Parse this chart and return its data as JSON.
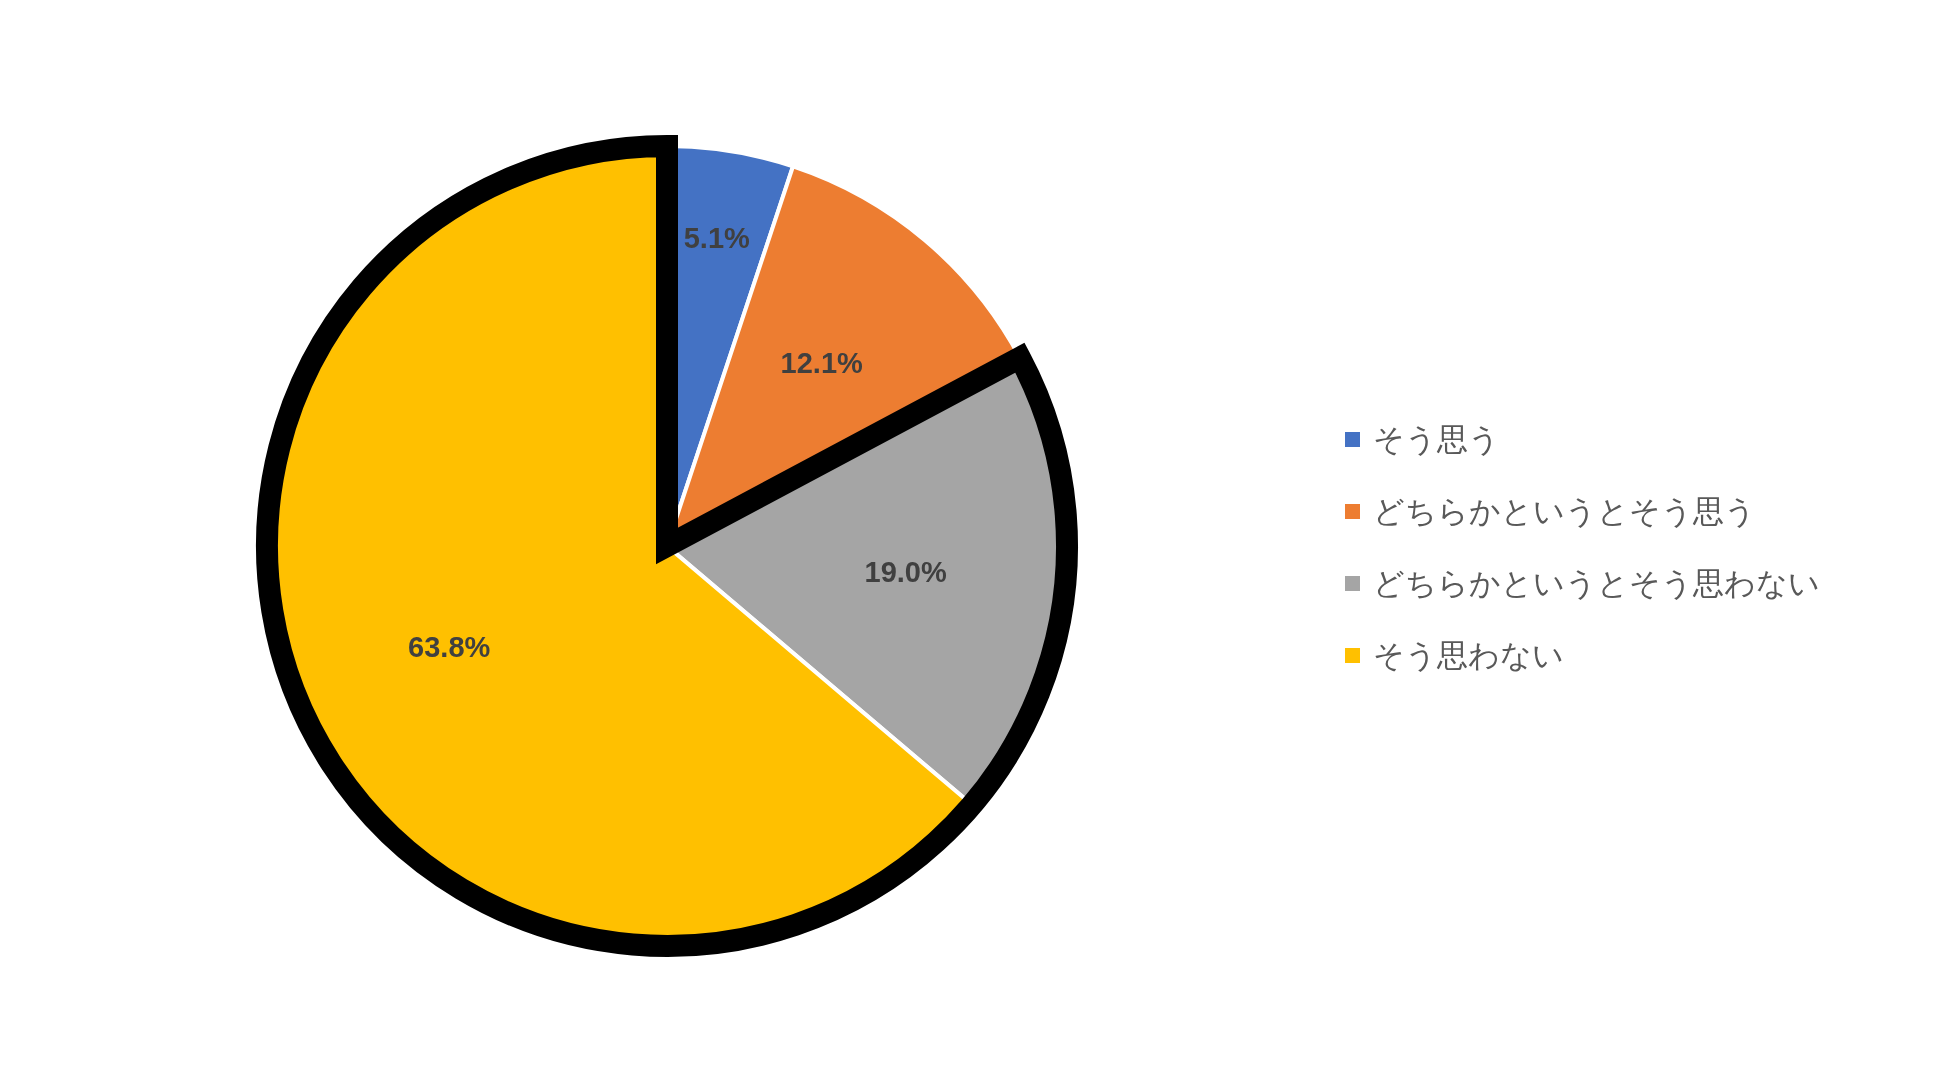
{
  "chart_data": {
    "type": "pie",
    "categories": [
      "そう思う",
      "どちらかというとそう思う",
      "どちらかというとそう思わない",
      "そう思わない"
    ],
    "values": [
      5.1,
      12.1,
      19.0,
      63.8
    ],
    "colors": [
      "#4472c4",
      "#ed7d31",
      "#a5a5a5",
      "#ffc000"
    ],
    "value_labels": [
      "5.1%",
      "12.1%",
      "19.0%",
      "63.8%"
    ],
    "legend": "right"
  }
}
